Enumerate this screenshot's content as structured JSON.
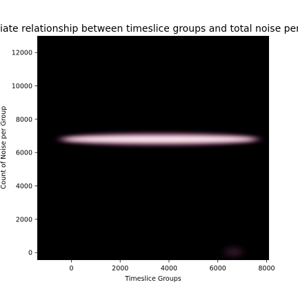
{
  "chart_data": {
    "type": "heatmap",
    "title": "Bivariate relationship between timeslice groups and total noise per group",
    "xlabel": "Timeslice Groups",
    "ylabel": "Count of Noise per Group",
    "xlim": [
      -1400,
      8100
    ],
    "ylim": [
      -450,
      13000
    ],
    "xticks": [
      0,
      2000,
      4000,
      6000,
      8000
    ],
    "yticks": [
      0,
      2000,
      4000,
      6000,
      8000,
      10000,
      12000
    ],
    "background_color": "#000000",
    "high_density_color": "#fbeef0",
    "mid_density_color": "#7a3a6a",
    "density_regions": [
      {
        "x_from": -400,
        "x_to": 7600,
        "y_center": 6800,
        "y_spread": 260,
        "intensity": 1.0
      },
      {
        "x_from": 6300,
        "x_to": 7000,
        "y_center": 40,
        "y_spread": 280,
        "intensity": 0.18
      }
    ]
  }
}
